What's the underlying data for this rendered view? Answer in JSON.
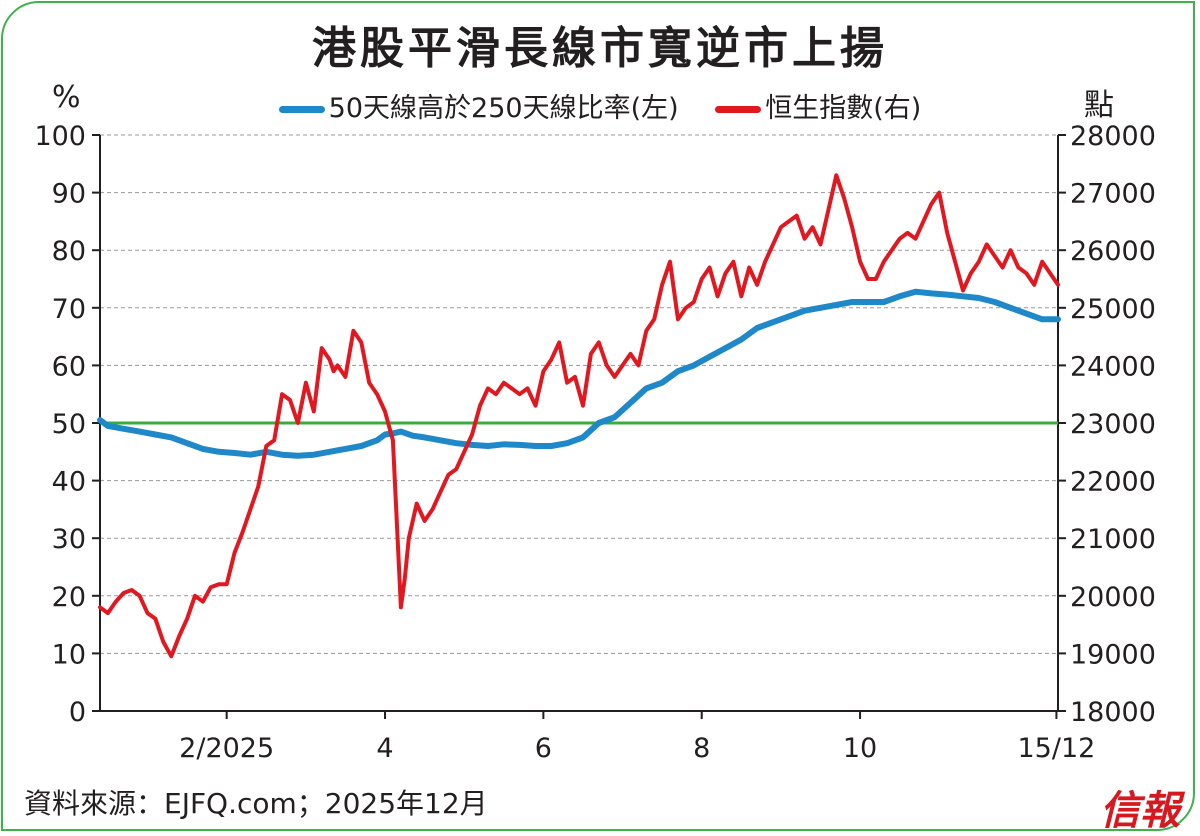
{
  "chart_data": {
    "type": "line",
    "title": "港股平滑長線市寬逆市上揚",
    "y_left_unit": "%",
    "y_right_unit": "點",
    "ylim_left": [
      0,
      100
    ],
    "ylim_right": [
      18000,
      28000
    ],
    "y_left_ticks": [
      "0",
      "10",
      "20",
      "30",
      "40",
      "50",
      "60",
      "70",
      "80",
      "90",
      "100"
    ],
    "y_right_ticks": [
      "18000",
      "19000",
      "20000",
      "21000",
      "22000",
      "23000",
      "24000",
      "25000",
      "26000",
      "27000",
      "28000"
    ],
    "x_tick_labels": [
      "2/2025",
      "4",
      "6",
      "8",
      "10",
      "15/12"
    ],
    "x_tick_positions": [
      2.0,
      4.0,
      6.0,
      8.0,
      10.0,
      12.48
    ],
    "x_range": [
      0.4,
      12.5
    ],
    "grid": "horizontal dashed",
    "reference_line": {
      "value": 50,
      "axis": "left",
      "color": "#3aac3c"
    },
    "series": [
      {
        "name": "50天線高於250天線比率(左)",
        "axis": "left",
        "color": "#1e88c8",
        "x": [
          0.4,
          0.5,
          0.7,
          0.9,
          1.1,
          1.3,
          1.5,
          1.7,
          1.9,
          2.1,
          2.3,
          2.5,
          2.7,
          2.9,
          3.1,
          3.3,
          3.5,
          3.7,
          3.9,
          4.0,
          4.1,
          4.2,
          4.35,
          4.5,
          4.7,
          4.9,
          5.1,
          5.3,
          5.5,
          5.7,
          5.9,
          6.1,
          6.3,
          6.5,
          6.7,
          6.9,
          7.1,
          7.3,
          7.5,
          7.7,
          7.9,
          8.1,
          8.3,
          8.5,
          8.7,
          8.9,
          9.1,
          9.3,
          9.5,
          9.7,
          9.9,
          10.1,
          10.3,
          10.5,
          10.7,
          10.9,
          11.1,
          11.3,
          11.5,
          11.7,
          11.9,
          12.1,
          12.3,
          12.5
        ],
        "values": [
          50.5,
          49.5,
          49,
          48.5,
          48,
          47.5,
          46.5,
          45.5,
          45,
          44.8,
          44.5,
          45,
          44.5,
          44.3,
          44.5,
          45,
          45.5,
          46,
          47,
          48,
          48.2,
          48.5,
          47.8,
          47.5,
          47,
          46.5,
          46.2,
          46,
          46.3,
          46.2,
          46,
          46,
          46.5,
          47.5,
          50,
          51,
          53.5,
          56,
          57,
          59,
          60,
          61.5,
          63,
          64.5,
          66.5,
          67.5,
          68.5,
          69.5,
          70,
          70.5,
          71,
          71,
          71,
          72,
          72.8,
          72.5,
          72.3,
          72,
          71.7,
          71,
          70,
          69,
          68,
          68
        ]
      },
      {
        "name": "恒生指數(右)",
        "axis": "right",
        "color": "#e3171f",
        "x": [
          0.4,
          0.5,
          0.6,
          0.7,
          0.8,
          0.9,
          1.0,
          1.1,
          1.2,
          1.3,
          1.4,
          1.5,
          1.6,
          1.7,
          1.8,
          1.9,
          2.0,
          2.1,
          2.2,
          2.3,
          2.4,
          2.5,
          2.6,
          2.7,
          2.8,
          2.9,
          3.0,
          3.1,
          3.2,
          3.3,
          3.35,
          3.4,
          3.5,
          3.6,
          3.7,
          3.8,
          3.9,
          4.0,
          4.1,
          4.2,
          4.25,
          4.3,
          4.4,
          4.5,
          4.6,
          4.7,
          4.8,
          4.9,
          5.0,
          5.1,
          5.2,
          5.3,
          5.4,
          5.5,
          5.6,
          5.7,
          5.8,
          5.9,
          6.0,
          6.1,
          6.2,
          6.3,
          6.4,
          6.5,
          6.6,
          6.7,
          6.8,
          6.9,
          7.0,
          7.1,
          7.2,
          7.3,
          7.4,
          7.5,
          7.6,
          7.7,
          7.8,
          7.9,
          8.0,
          8.1,
          8.2,
          8.3,
          8.4,
          8.5,
          8.6,
          8.7,
          8.8,
          8.9,
          9.0,
          9.1,
          9.2,
          9.3,
          9.4,
          9.5,
          9.6,
          9.7,
          9.8,
          9.9,
          10.0,
          10.1,
          10.2,
          10.3,
          10.4,
          10.5,
          10.6,
          10.7,
          10.8,
          10.9,
          11.0,
          11.1,
          11.2,
          11.3,
          11.4,
          11.5,
          11.6,
          11.7,
          11.8,
          11.9,
          12.0,
          12.1,
          12.2,
          12.3,
          12.4,
          12.5
        ],
        "values": [
          19800,
          19700,
          19900,
          20050,
          20100,
          20000,
          19700,
          19600,
          19200,
          18950,
          19300,
          19600,
          20000,
          19900,
          20150,
          20200,
          20200,
          20750,
          21100,
          21500,
          21900,
          22600,
          22700,
          23500,
          23400,
          23000,
          23700,
          23200,
          24300,
          24100,
          23900,
          24000,
          23800,
          24600,
          24400,
          23700,
          23500,
          23200,
          22700,
          19800,
          20300,
          21000,
          21600,
          21300,
          21500,
          21800,
          22100,
          22200,
          22500,
          22800,
          23300,
          23600,
          23500,
          23700,
          23600,
          23500,
          23600,
          23300,
          23900,
          24100,
          24400,
          23700,
          23800,
          23300,
          24200,
          24400,
          24000,
          23800,
          24000,
          24200,
          24000,
          24600,
          24800,
          25400,
          25800,
          24800,
          25000,
          25100,
          25500,
          25700,
          25200,
          25600,
          25800,
          25200,
          25700,
          25400,
          25800,
          26100,
          26400,
          26500,
          26600,
          26200,
          26400,
          26100,
          26700,
          27300,
          26900,
          26400,
          25800,
          25500,
          25500,
          25800,
          26000,
          26200,
          26300,
          26200,
          26500,
          26800,
          27000,
          26300,
          25800,
          25300,
          25600,
          25800,
          26100,
          25900,
          25700,
          26000,
          25700,
          25600,
          25400,
          25800,
          25600,
          25400
        ]
      }
    ]
  },
  "legend": {
    "left_series": "50天線高於250天線比率(左)",
    "right_series": "恒生指數(右)"
  },
  "footer": {
    "source": "資料來源：EJFQ.com；2025年12月",
    "brand": "信報"
  },
  "colors": {
    "frame": "#3db34a",
    "ratio_line": "#1e88c8",
    "hsi_line": "#e3171f",
    "ref_line": "#3aac3c",
    "brand": "#d7191f"
  }
}
